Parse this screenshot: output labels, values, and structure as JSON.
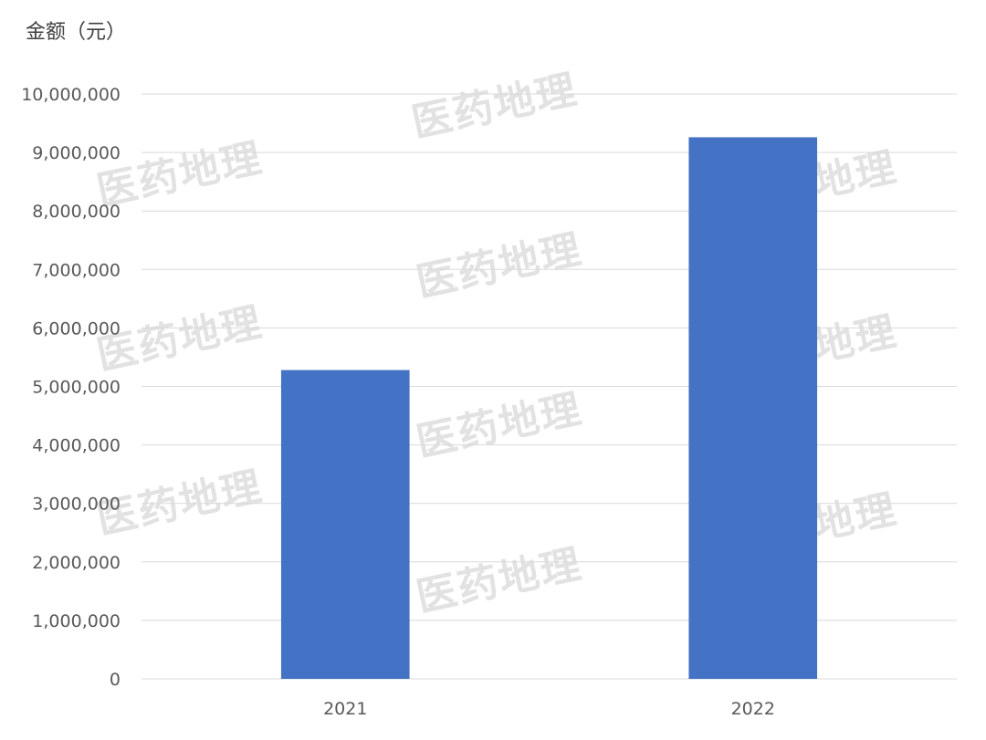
{
  "chart_data": {
    "type": "bar",
    "ylabel": "金额（元）",
    "categories": [
      "2021",
      "2022"
    ],
    "values": [
      5280000,
      9260000
    ],
    "ylim": [
      0,
      10000000
    ],
    "y_ticks": [
      "0",
      "1,000,000",
      "2,000,000",
      "3,000,000",
      "4,000,000",
      "5,000,000",
      "6,000,000",
      "7,000,000",
      "8,000,000",
      "9,000,000",
      "10,000,000"
    ],
    "grid": true,
    "bar_color": "#4472C4",
    "gridline_color": "#d9d9d9"
  },
  "watermark_text": "医药地理"
}
